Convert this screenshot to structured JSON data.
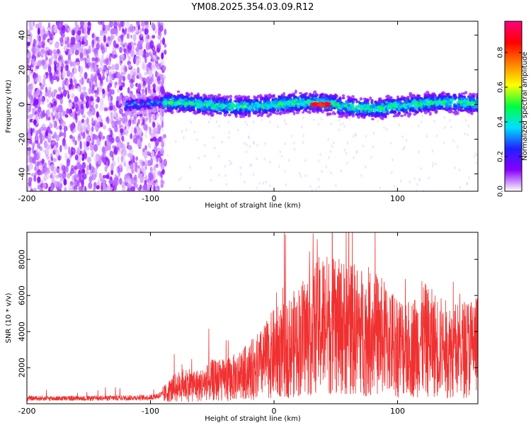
{
  "chart_data": [
    {
      "type": "heatmap",
      "title": "YM08.2025.354.03.09.R12",
      "xlabel": "Height of straight line (km)",
      "ylabel": "Frequency (Hz)",
      "xlim": [
        -200,
        165
      ],
      "ylim": [
        -50,
        48
      ],
      "xticks": [
        -200,
        -100,
        0,
        100
      ],
      "xtick_labels": [
        "-200",
        "-100",
        "0",
        "100"
      ],
      "yticks": [
        -40,
        -20,
        0,
        20,
        40
      ],
      "ytick_labels": [
        "-40",
        "-20",
        "0",
        "20",
        "40"
      ],
      "colorbar": {
        "label": "Normalized spectral amplitude",
        "range": [
          0,
          0.98
        ],
        "ticks": [
          0,
          0.2,
          0.4,
          0.6,
          0.8
        ],
        "tick_labels": [
          "0.0",
          "0.2",
          "0.4",
          "0.6",
          "0.8"
        ],
        "colors": [
          "#ffffff",
          "#8800ff",
          "#2020ff",
          "#00e0ff",
          "#00ff40",
          "#ffff00",
          "#ff8000",
          "#ff0000",
          "#ff0080"
        ]
      },
      "description_regions": [
        {
          "x_range": [
            -200,
            -88
          ],
          "f_range": [
            -50,
            48
          ],
          "amplitude": [
            0.0,
            0.1
          ]
        },
        {
          "x_range": [
            -120,
            165
          ],
          "f_range": [
            -6,
            6
          ],
          "amplitude": [
            0.1,
            0.5
          ]
        },
        {
          "x_range": [
            30,
            45
          ],
          "f_range": [
            -1,
            1
          ],
          "amplitude": [
            0.8,
            0.98
          ]
        }
      ]
    },
    {
      "type": "line",
      "xlabel": "Height of straight line (km)",
      "ylabel": "SNR (10 * v/v)",
      "xlim": [
        -200,
        165
      ],
      "ylim": [
        0,
        9500
      ],
      "xticks": [
        -200,
        -100,
        0,
        100
      ],
      "xtick_labels": [
        "-200",
        "-100",
        "0",
        "100"
      ],
      "yticks": [
        2000,
        4000,
        6000,
        8000
      ],
      "ytick_labels": [
        "2000",
        "4000",
        "6000",
        "8000"
      ],
      "series": [
        {
          "name": "SNR",
          "color": "#f03030",
          "x": [
            -200,
            -150,
            -100,
            -90,
            -80,
            -70,
            -60,
            -50,
            -40,
            -30,
            -20,
            -10,
            0,
            10,
            20,
            30,
            40,
            50,
            60,
            70,
            80,
            90,
            100,
            110,
            120,
            130,
            140,
            150,
            165
          ],
          "values": [
            300,
            300,
            350,
            500,
            900,
            1100,
            1000,
            1300,
            1300,
            1500,
            1800,
            2200,
            2800,
            3000,
            3500,
            4000,
            4500,
            4200,
            4300,
            4000,
            4000,
            3600,
            3300,
            3000,
            3600,
            3300,
            3000,
            3000,
            3300
          ]
        }
      ]
    }
  ]
}
